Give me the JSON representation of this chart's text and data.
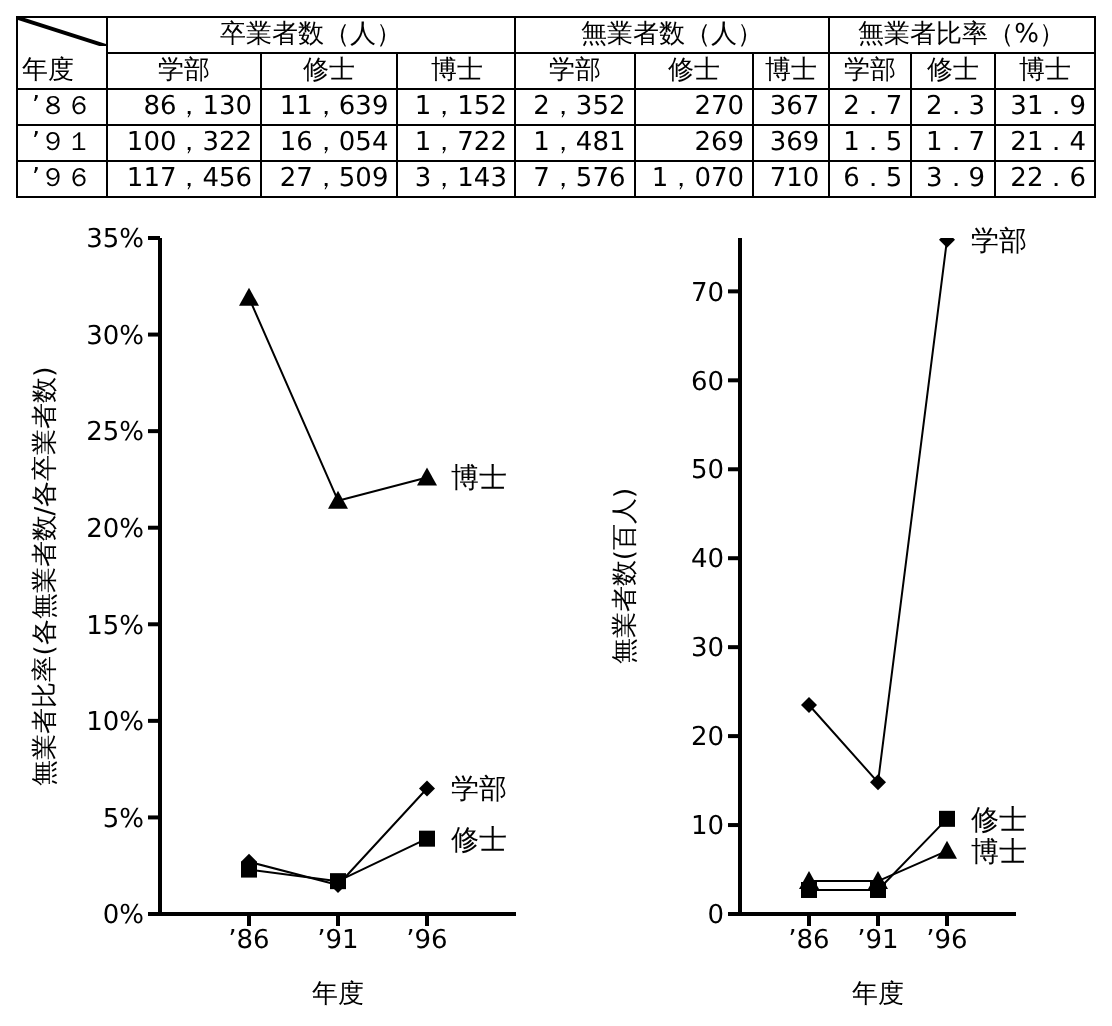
{
  "chart_data": [
    {
      "type": "other",
      "annotations": [
        "年度",
        "卒業者数（人）",
        "無業者数（人）",
        "無業者比率（%）",
        "学部",
        "修士",
        "博士",
        "学部",
        "修士",
        "博士",
        "学部",
        "修士",
        "博士",
        "’８６",
        "86，130",
        "11，639",
        "1，152",
        "2，352",
        "270",
        "367",
        "2．7",
        "2．3",
        "31．9",
        "’９１",
        "100，322",
        "16，054",
        "1，722",
        "1，481",
        "269",
        "369",
        "1．5",
        "1．7",
        "21．4",
        "’９６",
        "117，456",
        "27，509",
        "3，143",
        "7，576",
        "1，070",
        "710",
        "6．5",
        "3．9",
        "22．6"
      ]
    },
    {
      "type": "line",
      "xlabel": "年度",
      "ylabel": "無業者比率(各無業者数/各卒業者数)",
      "categories": [
        null,
        "’86",
        "’91",
        "’96",
        null
      ],
      "ylim": [
        0,
        35
      ],
      "yticks": [
        {
          "value": 0,
          "label": "0%"
        },
        {
          "value": 5,
          "label": "5%"
        },
        {
          "value": 10,
          "label": "10%"
        },
        {
          "value": 15,
          "label": "15%"
        },
        {
          "value": 20,
          "label": "20%"
        },
        {
          "value": 25,
          "label": "25%"
        },
        {
          "value": 30,
          "label": "30%"
        },
        {
          "value": 35,
          "label": "35%"
        }
      ],
      "legend": false,
      "grid": false,
      "series": [
        {
          "name": "学部",
          "color": "#000000",
          "marker": "diamond",
          "values": [
            null,
            2.7,
            1.5,
            6.5,
            null
          ]
        },
        {
          "name": "修士",
          "color": "#000000",
          "marker": "square",
          "values": [
            null,
            2.3,
            1.7,
            3.9,
            null
          ]
        },
        {
          "name": "博士",
          "color": "#000000",
          "marker": "triangle",
          "values": [
            null,
            31.9,
            21.4,
            22.6,
            null
          ]
        }
      ]
    },
    {
      "type": "line",
      "xlabel": "年度",
      "ylabel": "無業者数(百人)",
      "categories": [
        null,
        "’86",
        "’91",
        "’96",
        null
      ],
      "ylim": [
        0,
        76
      ],
      "yticks": [
        0,
        10,
        20,
        30,
        40,
        50,
        60,
        70
      ],
      "legend": false,
      "grid": false,
      "series": [
        {
          "name": "学部",
          "color": "#000000",
          "marker": "diamond",
          "values": [
            null,
            23.5,
            14.8,
            75.8,
            null
          ]
        },
        {
          "name": "修士",
          "color": "#000000",
          "marker": "square",
          "values": [
            null,
            2.7,
            2.7,
            10.7,
            null
          ]
        },
        {
          "name": "博士",
          "color": "#000000",
          "marker": "triangle",
          "values": [
            null,
            3.7,
            3.7,
            7.1,
            null
          ]
        }
      ]
    }
  ]
}
